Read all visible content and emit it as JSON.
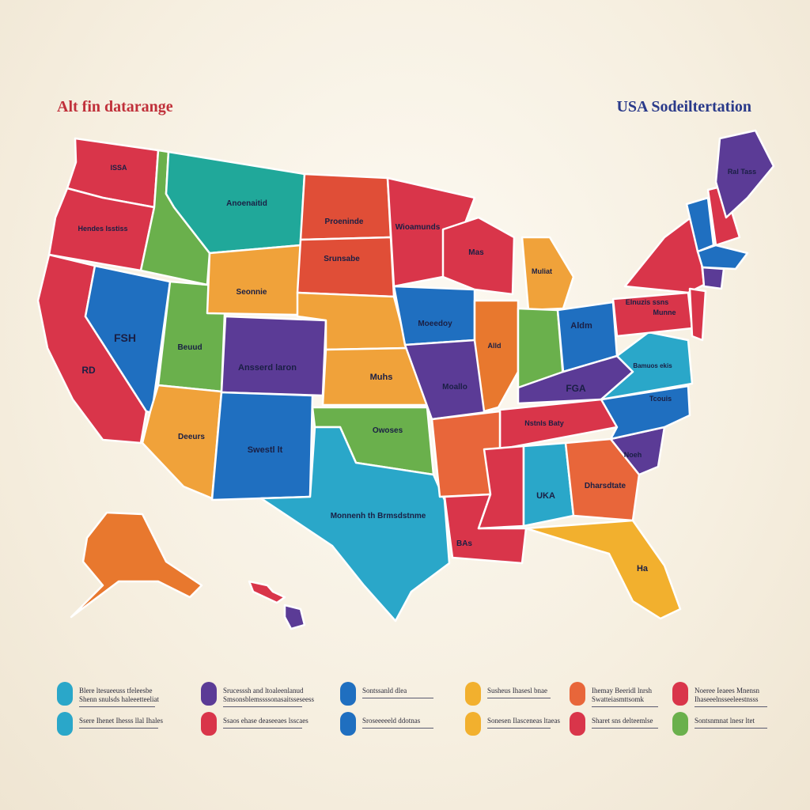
{
  "titles": {
    "left": "Alt fin datarange",
    "right": "USA Sodeiltertation",
    "left_color": "#c0303a",
    "right_color": "#2a3a8a"
  },
  "states": {
    "wa": "ISSA",
    "or": "Hendes Isstiss",
    "mt": "Anoenaitid",
    "nd": "Proeninde",
    "sd": "Srunsabe",
    "mn": "Wioamunds",
    "wi": "Mas",
    "mi": "Muliat",
    "ny": "Elnuzis ssns",
    "nv": "FSH",
    "ca": "RD",
    "ut": "Beuud",
    "wy": "Seonnie",
    "co": "Ansserd laron",
    "ks": "Muhs",
    "ia": "Moeedoy",
    "il": "Alld",
    "oh": "Aldm",
    "mo": "Moallo",
    "pa": "Munne",
    "va": "Bamuos ekis",
    "az": "Deeurs",
    "nm": "Swestl lt",
    "ok": "Owoses",
    "tn": "Nstnls Baty",
    "nc": "Tcouis",
    "sc": "Noeh",
    "tx": "Monnenh th Brmsdstnme",
    "al": "UKA",
    "ga": "Dharsdtate",
    "la": "BAs",
    "fl": "Ha",
    "me": "Ral Tass",
    "ky": "FGA"
  },
  "legend": [
    {
      "color": "#2aa7c9",
      "line1": "Blere ltesueeuss tfeleesbe",
      "line2": "Shenn snulsds haleeetteeliat"
    },
    {
      "color": "#2aa7c9",
      "line1": "Ssere Ihenet Ihesss llal Ihales",
      "line2": ""
    },
    {
      "color": "#5b3b96",
      "line1": "Srucesssh and ltoaleenlanud",
      "line2": "Smsonsblemssssonasaitsseseess"
    },
    {
      "color": "#d9354a",
      "line1": "Ssaos ehase deaseeaes lsscaes",
      "line2": ""
    },
    {
      "color": "#1f6fc0",
      "line1": "Sontssanld dlea",
      "line2": ""
    },
    {
      "color": "#1f6fc0",
      "line1": "Sroseeeeeld ddotnas",
      "line2": ""
    },
    {
      "color": "#f2b02e",
      "line1": "Susheus Ihasesl bnae",
      "line2": ""
    },
    {
      "color": "#f2b02e",
      "line1": "Sonesen Ilasceneas ltaeas",
      "line2": ""
    },
    {
      "color": "#e8663a",
      "line1": "Ihemay Beeridl lnrsh",
      "line2": "Swatteiasmttsomk"
    },
    {
      "color": "#d9354a",
      "line1": "Sharet sns delteemlse",
      "line2": ""
    },
    {
      "color": "#d9354a",
      "line1": "Noeree Ieaees Mnensn",
      "line2": "Ihaseeelnsseeleestnsss"
    },
    {
      "color": "#6ab04c",
      "line1": "Sontsnmnat lnesr ltet",
      "line2": ""
    }
  ]
}
